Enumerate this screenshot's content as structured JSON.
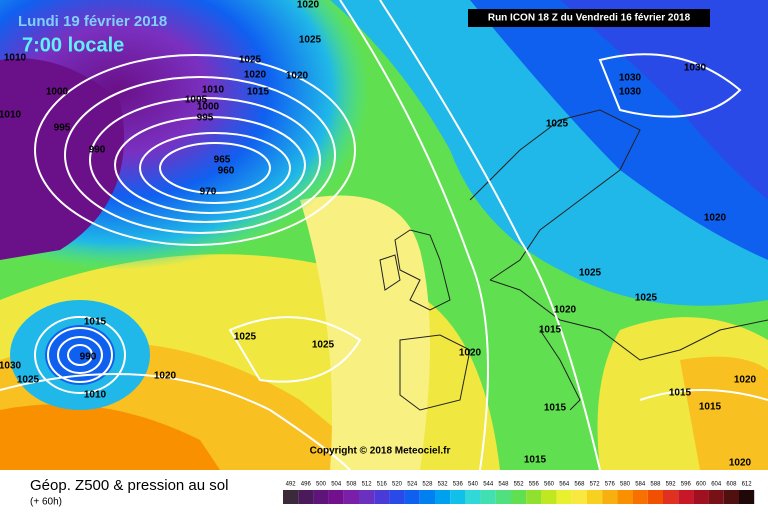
{
  "header": {
    "date": "Lundi 19 février 2018",
    "time": "7:00 locale",
    "run": "Run ICON 18 Z du Vendredi 16 février 2018"
  },
  "copyright": "Copyright © 2018 Meteociel.fr",
  "footer": {
    "title": "Géop. Z500 & pression au sol",
    "lead": "(+ 60h)"
  },
  "isobar_labels": [
    1010,
    1000,
    1010,
    995,
    990,
    1025,
    1020,
    1015,
    1020,
    1025,
    1020,
    1010,
    1005,
    1000,
    995,
    965,
    960,
    970,
    1030,
    1030,
    1030,
    1025,
    1020,
    1025,
    1025,
    1020,
    1015,
    1020,
    1025,
    1025,
    1020,
    1010,
    1015,
    990,
    1030,
    1025,
    1015,
    1015,
    1015,
    1020,
    1020,
    1015
  ],
  "colorbar": {
    "values": [
      492,
      496,
      500,
      504,
      508,
      512,
      516,
      520,
      524,
      528,
      532,
      536,
      540,
      544,
      548,
      552,
      556,
      560,
      564,
      568,
      572,
      576,
      580,
      584,
      588,
      592,
      596,
      600,
      604,
      608,
      612
    ],
    "colors": [
      "#3a2a3a",
      "#4a1a5a",
      "#5e1478",
      "#72108e",
      "#7a20a8",
      "#6a30c0",
      "#4a3ad8",
      "#2a4ae8",
      "#1060f0",
      "#0080f0",
      "#00a0f0",
      "#10c0e8",
      "#30d8d8",
      "#40e0b0",
      "#50e080",
      "#60e050",
      "#90e030",
      "#c0e820",
      "#e8f030",
      "#f8e840",
      "#f8d020",
      "#f8b010",
      "#f89000",
      "#f87000",
      "#f05000",
      "#e03020",
      "#c81828",
      "#a01020",
      "#781018",
      "#501010",
      "#200808"
    ]
  }
}
